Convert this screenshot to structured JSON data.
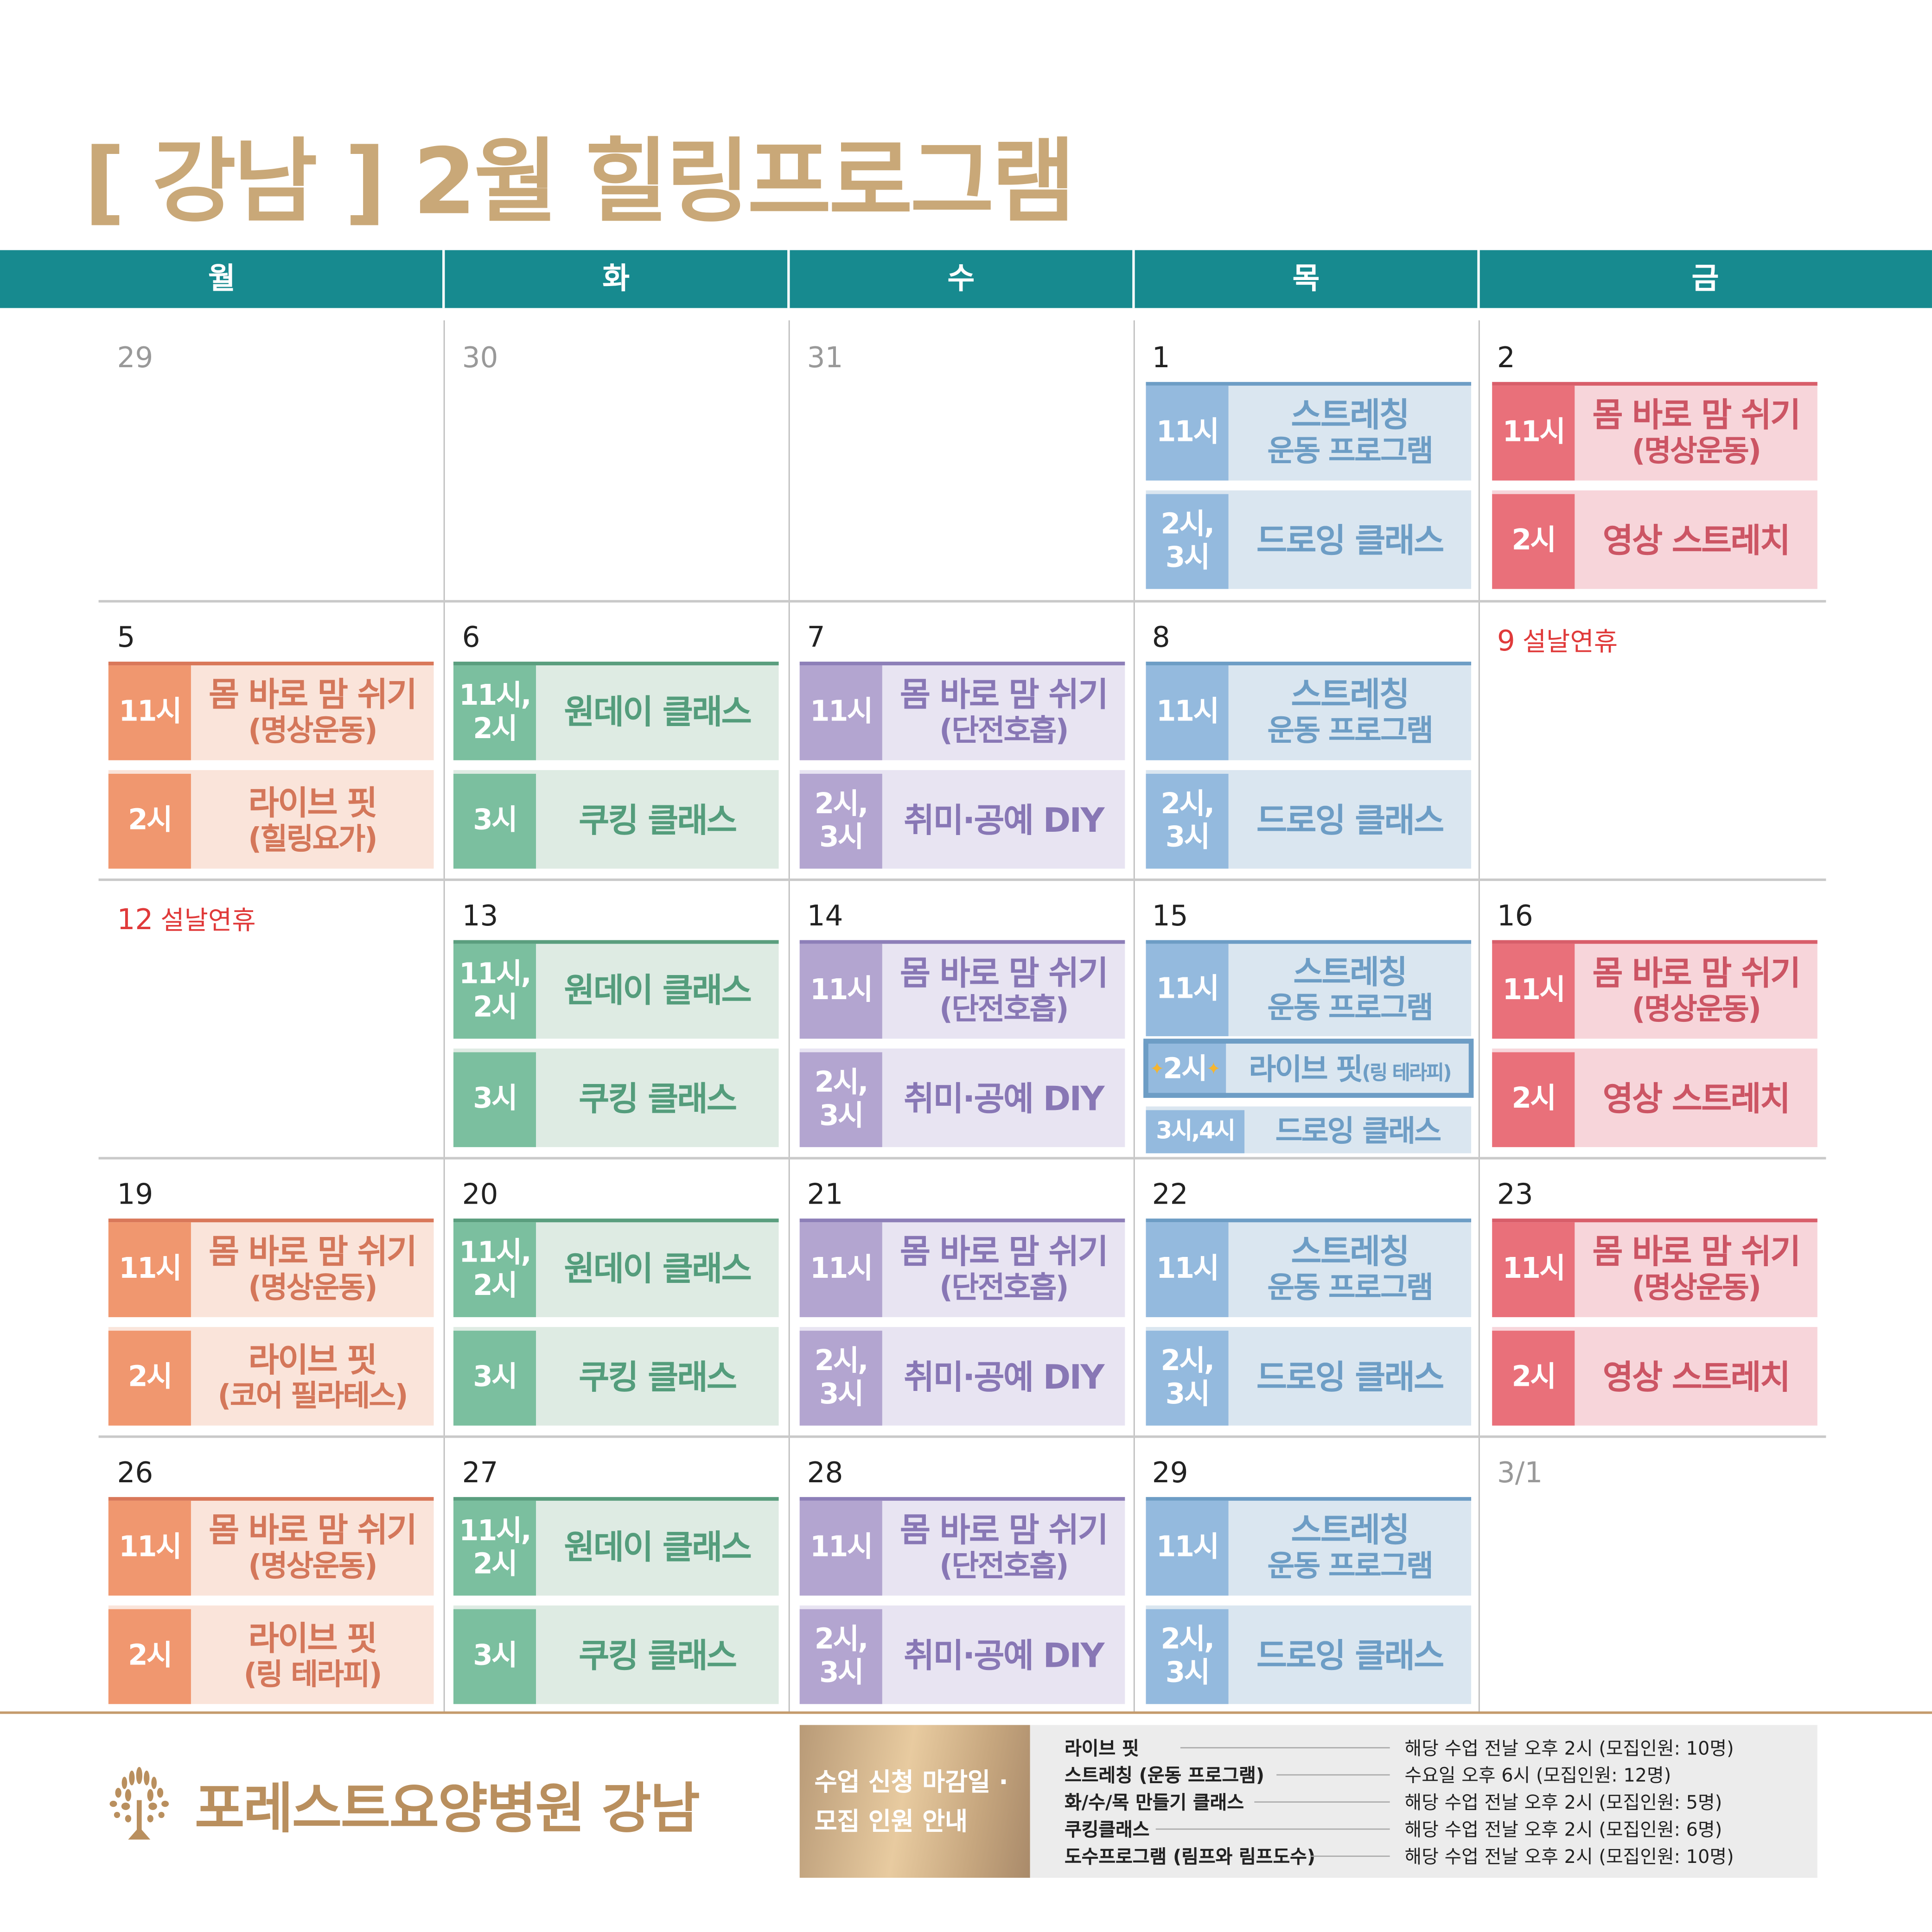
{
  "title": "[ 강남 ] 2월 힐링프로그램",
  "weekdays": [
    "월",
    "화",
    "수",
    "목",
    "금"
  ],
  "themes": {
    "orange": {
      "time": "#f0976f",
      "bg": "#fae4da",
      "text": "#d4775a",
      "bar": "#d9785a"
    },
    "green": {
      "time": "#7bbf9f",
      "bg": "#deebe3",
      "text": "#549d7c",
      "bar": "#5a9e7e"
    },
    "purple": {
      "time": "#b3a5d0",
      "bg": "#e8e4f2",
      "text": "#8877b5",
      "bar": "#8d7fb8"
    },
    "blue": {
      "time": "#94bade",
      "bg": "#dae6f0",
      "text": "#6d9dc5",
      "bar": "#6d9dc5"
    },
    "pink": {
      "time": "#e9707a",
      "bg": "#f7d5da",
      "text": "#cc5564",
      "bar": "#d85e6a"
    }
  },
  "weeks": [
    [
      {
        "date": "29",
        "style": "grey",
        "events": []
      },
      {
        "date": "30",
        "style": "grey",
        "events": []
      },
      {
        "date": "31",
        "style": "grey",
        "events": []
      },
      {
        "date": "1",
        "style": "normal",
        "events": [
          {
            "time": "11시",
            "title": "스트레칭",
            "sub": "운동 프로그램",
            "theme": "blue"
          },
          {
            "time": "2시,\n3시",
            "title": "드로잉 클래스",
            "sub": "",
            "theme": "blue"
          }
        ]
      },
      {
        "date": "2",
        "style": "normal",
        "events": [
          {
            "time": "11시",
            "title": "몸 바로 맘 쉬기",
            "sub": "(명상운동)",
            "theme": "pink"
          },
          {
            "time": "2시",
            "title": "영상 스트레치",
            "sub": "",
            "theme": "pink"
          }
        ]
      }
    ],
    [
      {
        "date": "5",
        "style": "normal",
        "events": [
          {
            "time": "11시",
            "title": "몸 바로 맘 쉬기",
            "sub": "(명상운동)",
            "theme": "orange"
          },
          {
            "time": "2시",
            "title": "라이브 핏",
            "sub": "(힐링요가)",
            "theme": "orange"
          }
        ]
      },
      {
        "date": "6",
        "style": "normal",
        "events": [
          {
            "time": "11시,\n2시",
            "title": "원데이 클래스",
            "sub": "",
            "theme": "green"
          },
          {
            "time": "3시",
            "title": "쿠킹 클래스",
            "sub": "",
            "theme": "green"
          }
        ]
      },
      {
        "date": "7",
        "style": "normal",
        "events": [
          {
            "time": "11시",
            "title": "몸 바로 맘 쉬기",
            "sub": "(단전호흡)",
            "theme": "purple"
          },
          {
            "time": "2시,\n3시",
            "title": "취미·공예 DIY",
            "sub": "",
            "theme": "purple"
          }
        ]
      },
      {
        "date": "8",
        "style": "normal",
        "events": [
          {
            "time": "11시",
            "title": "스트레칭",
            "sub": "운동 프로그램",
            "theme": "blue"
          },
          {
            "time": "2시,\n3시",
            "title": "드로잉 클래스",
            "sub": "",
            "theme": "blue"
          }
        ]
      },
      {
        "date": "9",
        "style": "red",
        "holiday": "설날연휴",
        "events": []
      }
    ],
    [
      {
        "date": "12",
        "style": "red",
        "holiday": "설날연휴",
        "events": []
      },
      {
        "date": "13",
        "style": "normal",
        "events": [
          {
            "time": "11시,\n2시",
            "title": "원데이 클래스",
            "sub": "",
            "theme": "green"
          },
          {
            "time": "3시",
            "title": "쿠킹 클래스",
            "sub": "",
            "theme": "green"
          }
        ]
      },
      {
        "date": "14",
        "style": "normal",
        "events": [
          {
            "time": "11시",
            "title": "몸 바로 맘 쉬기",
            "sub": "(단전호흡)",
            "theme": "purple"
          },
          {
            "time": "2시,\n3시",
            "title": "취미·공예 DIY",
            "sub": "",
            "theme": "purple"
          }
        ]
      },
      {
        "date": "15",
        "style": "normal",
        "events": [
          {
            "time": "11시",
            "title": "스트레칭",
            "sub": "운동 프로그램",
            "theme": "blue"
          },
          {
            "time": "2시",
            "title": "라이브 핏",
            "small": "(링 테라피)",
            "theme": "blue",
            "highlight": true
          },
          {
            "time": "3시,4시",
            "title": "드로잉 클래스",
            "sub": "",
            "theme": "blue"
          }
        ]
      },
      {
        "date": "16",
        "style": "normal",
        "events": [
          {
            "time": "11시",
            "title": "몸 바로 맘 쉬기",
            "sub": "(명상운동)",
            "theme": "pink"
          },
          {
            "time": "2시",
            "title": "영상 스트레치",
            "sub": "",
            "theme": "pink"
          }
        ]
      }
    ],
    [
      {
        "date": "19",
        "style": "normal",
        "events": [
          {
            "time": "11시",
            "title": "몸 바로 맘 쉬기",
            "sub": "(명상운동)",
            "theme": "orange"
          },
          {
            "time": "2시",
            "title": "라이브 핏",
            "sub": "(코어 필라테스)",
            "theme": "orange"
          }
        ]
      },
      {
        "date": "20",
        "style": "normal",
        "events": [
          {
            "time": "11시,\n2시",
            "title": "원데이 클래스",
            "sub": "",
            "theme": "green"
          },
          {
            "time": "3시",
            "title": "쿠킹 클래스",
            "sub": "",
            "theme": "green"
          }
        ]
      },
      {
        "date": "21",
        "style": "normal",
        "events": [
          {
            "time": "11시",
            "title": "몸 바로 맘 쉬기",
            "sub": "(단전호흡)",
            "theme": "purple"
          },
          {
            "time": "2시,\n3시",
            "title": "취미·공예 DIY",
            "sub": "",
            "theme": "purple"
          }
        ]
      },
      {
        "date": "22",
        "style": "normal",
        "events": [
          {
            "time": "11시",
            "title": "스트레칭",
            "sub": "운동 프로그램",
            "theme": "blue"
          },
          {
            "time": "2시,\n3시",
            "title": "드로잉 클래스",
            "sub": "",
            "theme": "blue"
          }
        ]
      },
      {
        "date": "23",
        "style": "normal",
        "events": [
          {
            "time": "11시",
            "title": "몸 바로 맘 쉬기",
            "sub": "(명상운동)",
            "theme": "pink"
          },
          {
            "time": "2시",
            "title": "영상 스트레치",
            "sub": "",
            "theme": "pink"
          }
        ]
      }
    ],
    [
      {
        "date": "26",
        "style": "normal",
        "events": [
          {
            "time": "11시",
            "title": "몸 바로 맘 쉬기",
            "sub": "(명상운동)",
            "theme": "orange"
          },
          {
            "time": "2시",
            "title": "라이브 핏",
            "sub": "(링 테라피)",
            "theme": "orange"
          }
        ]
      },
      {
        "date": "27",
        "style": "normal",
        "events": [
          {
            "time": "11시,\n2시",
            "title": "원데이 클래스",
            "sub": "",
            "theme": "green"
          },
          {
            "time": "3시",
            "title": "쿠킹 클래스",
            "sub": "",
            "theme": "green"
          }
        ]
      },
      {
        "date": "28",
        "style": "normal",
        "events": [
          {
            "time": "11시",
            "title": "몸 바로 맘 쉬기",
            "sub": "(단전호흡)",
            "theme": "purple"
          },
          {
            "time": "2시,\n3시",
            "title": "취미·공예 DIY",
            "sub": "",
            "theme": "purple"
          }
        ]
      },
      {
        "date": "29",
        "style": "normal",
        "events": [
          {
            "time": "11시",
            "title": "스트레칭",
            "sub": "운동 프로그램",
            "theme": "blue"
          },
          {
            "time": "2시,\n3시",
            "title": "드로잉 클래스",
            "sub": "",
            "theme": "blue"
          }
        ]
      },
      {
        "date": "3/1",
        "style": "grey",
        "events": []
      }
    ]
  ],
  "footer": {
    "logo_text": "포레스트요양병원 강남",
    "logo_icon": "tree-icon",
    "notice_line1": "수업 신청 마감일 ·",
    "notice_line2": "모집 인원 안내",
    "info": [
      {
        "name": "라이브 핏",
        "deadline": "해당 수업 전날 오후 2시 (모집인원: 10명)"
      },
      {
        "name": "스트레칭 (운동 프로그램)",
        "deadline": "수요일 오후 6시 (모집인원: 12명)"
      },
      {
        "name": "화/수/목 만들기 클래스",
        "deadline": "해당 수업 전날 오후 2시 (모집인원: 5명)"
      },
      {
        "name": "쿠킹클래스",
        "deadline": "해당 수업 전날 오후 2시 (모집인원: 6명)"
      },
      {
        "name": "도수프로그램 (림프와 림프도수)",
        "deadline": "해당 수업 전날 오후 2시 (모집인원: 10명)"
      }
    ]
  }
}
